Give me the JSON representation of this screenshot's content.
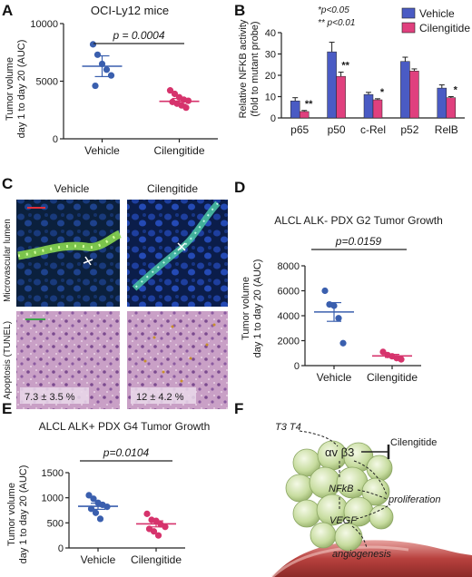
{
  "panels": {
    "A": {
      "letter": "A",
      "title": "OCI-Ly12 mice",
      "ylabel": [
        "Tumor volume",
        "day 1 to day 20 (AUC)"
      ],
      "pvalue": "p = 0.0004",
      "colors": {
        "vehicle": "#3a5fae",
        "cilengitide": "#d6336c"
      }
    },
    "B": {
      "letter": "B",
      "ylabel": [
        "Relative NFKB activity",
        "(fold to mutant probe)"
      ],
      "sig_note": [
        "*p<0.05",
        "** p<0.01"
      ],
      "legend": [
        "Vehicle",
        "Cilengitide"
      ],
      "colors": {
        "vehicle": "#4a5bc4",
        "cilengitide": "#e0407e"
      }
    },
    "C": {
      "letter": "C",
      "col_labels": [
        "Vehicle",
        "Cilengitide"
      ],
      "row_labels": [
        "Microvascular lumen",
        "Apoptosis (TUNEL)"
      ],
      "tunel_values": [
        "7.3 ± 3.5 %",
        "12 ± 4.2 %"
      ]
    },
    "D": {
      "letter": "D",
      "title": "ALCL ALK- PDX G2 Tumor Growth",
      "pvalue": "p=0.0159",
      "ylabel": [
        "Tumor volume",
        "day 1 to day 20 (AUC)"
      ]
    },
    "E": {
      "letter": "E",
      "title": "ALCL ALK+ PDX G4 Tumor Growth",
      "pvalue": "p=0.0104",
      "ylabel": [
        "Tumor volume",
        "day 1 to day 20 (AUC)"
      ]
    },
    "F": {
      "letter": "F",
      "labels": {
        "t3t4": "T3  T4",
        "receptor": "αv β3",
        "drug": "Cilengitide",
        "nfkb": "NFkB",
        "vegf": "VEGF",
        "proliferation": "proliferation",
        "angiogenesis": "angiogenesis"
      }
    }
  },
  "chart_data": [
    {
      "id": "A",
      "type": "scatter",
      "categories": [
        "Vehicle",
        "Cilengitide"
      ],
      "ylim": [
        0,
        10000
      ],
      "yticks": [
        0,
        5000,
        10000
      ],
      "series": [
        {
          "name": "Vehicle",
          "values": [
            8200,
            7300,
            6500,
            6000,
            5500,
            4600
          ],
          "mean": 6300,
          "sem": 900
        },
        {
          "name": "Cilengitide",
          "values": [
            4200,
            3900,
            3600,
            3400,
            3300,
            3200,
            3050,
            2900,
            2700
          ],
          "mean": 3250,
          "sem": 250
        }
      ]
    },
    {
      "id": "B",
      "type": "bar",
      "categories": [
        "p65",
        "p50",
        "c-Rel",
        "p52",
        "RelB"
      ],
      "ylim": [
        0,
        40
      ],
      "yticks": [
        0,
        10,
        20,
        30,
        40
      ],
      "series": [
        {
          "name": "Vehicle",
          "values": [
            8,
            31,
            11,
            26.5,
            14
          ],
          "errors": [
            1.5,
            4.5,
            1,
            2,
            1.5
          ]
        },
        {
          "name": "Cilengitide",
          "values": [
            3,
            19.5,
            8.5,
            22,
            9.5
          ],
          "errors": [
            0.5,
            2,
            0.5,
            1,
            0.5
          ]
        }
      ],
      "significance": [
        "**",
        "**",
        "*",
        "",
        "*"
      ]
    },
    {
      "id": "D",
      "type": "scatter",
      "categories": [
        "Vehicle",
        "Cilengitide"
      ],
      "ylim": [
        0,
        8000
      ],
      "yticks": [
        0,
        2000,
        4000,
        6000,
        8000
      ],
      "series": [
        {
          "name": "Vehicle",
          "values": [
            6000,
            4900,
            4800,
            3800,
            1800
          ],
          "mean": 4300,
          "sem": 750
        },
        {
          "name": "Cilengitide",
          "values": [
            1100,
            850,
            750,
            600,
            500
          ],
          "mean": 780,
          "sem": 120
        }
      ]
    },
    {
      "id": "E",
      "type": "scatter",
      "categories": [
        "Vehicle",
        "Cilengitide"
      ],
      "ylim": [
        0,
        1500
      ],
      "yticks": [
        0,
        500,
        1000,
        1500
      ],
      "series": [
        {
          "name": "Vehicle",
          "values": [
            1050,
            980,
            900,
            860,
            820,
            780,
            700,
            580
          ],
          "mean": 830,
          "sem": 60
        },
        {
          "name": "Cilengitide",
          "values": [
            680,
            560,
            540,
            470,
            420,
            380,
            330,
            250
          ],
          "mean": 480,
          "sem": 60
        }
      ]
    }
  ]
}
